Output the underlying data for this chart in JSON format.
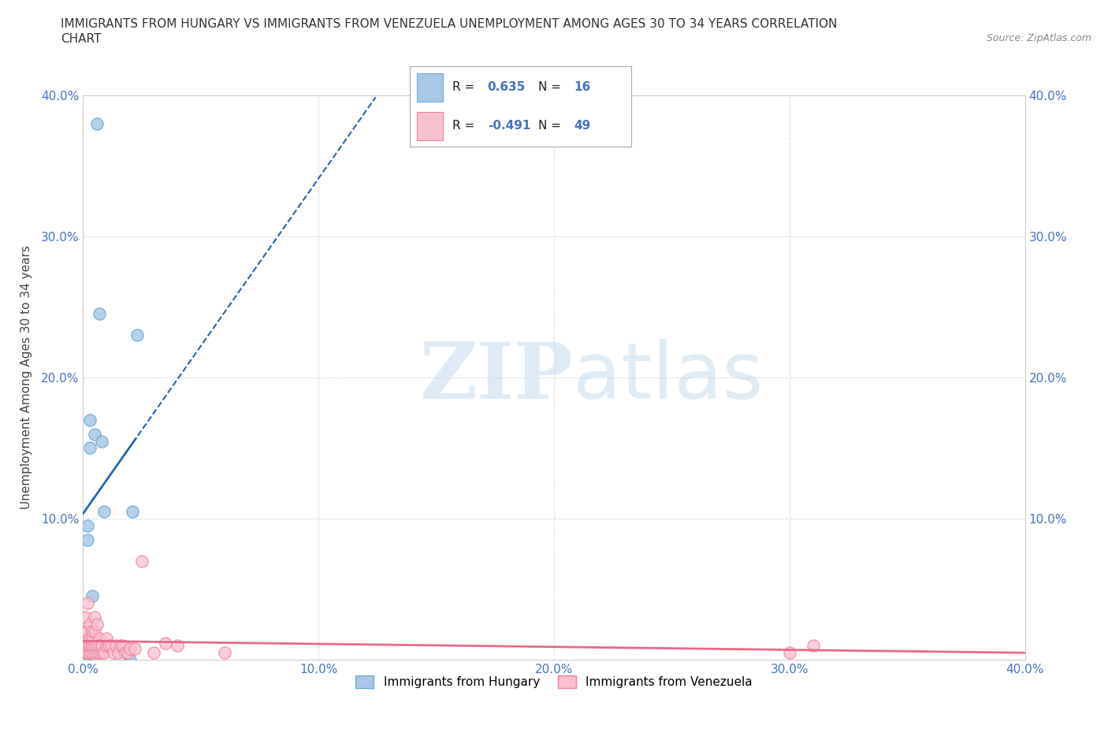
{
  "title_line1": "IMMIGRANTS FROM HUNGARY VS IMMIGRANTS FROM VENEZUELA UNEMPLOYMENT AMONG AGES 30 TO 34 YEARS CORRELATION",
  "title_line2": "CHART",
  "source_text": "Source: ZipAtlas.com",
  "ylabel": "Unemployment Among Ages 30 to 34 years",
  "xlim": [
    0.0,
    0.4
  ],
  "ylim": [
    0.0,
    0.4
  ],
  "xticks": [
    0.0,
    0.1,
    0.2,
    0.3,
    0.4
  ],
  "yticks": [
    0.0,
    0.1,
    0.2,
    0.3,
    0.4
  ],
  "xtick_labels": [
    "0.0%",
    "10.0%",
    "20.0%",
    "30.0%",
    "40.0%"
  ],
  "ytick_labels": [
    "",
    "10.0%",
    "20.0%",
    "30.0%",
    "40.0%"
  ],
  "right_ytick_labels": [
    "",
    "10.0%",
    "20.0%",
    "30.0%",
    "40.0%"
  ],
  "hungary_color": "#a8c8e8",
  "hungary_edge_color": "#6aaed6",
  "venezuela_color": "#f9c0d0",
  "venezuela_edge_color": "#f0809a",
  "hungary_line_color": "#2166ac",
  "venezuela_line_color": "#e8698a",
  "hungary_R": 0.635,
  "hungary_N": 16,
  "venezuela_R": -0.491,
  "venezuela_N": 49,
  "watermark_zip": "ZIP",
  "watermark_atlas": "atlas",
  "hungary_x": [
    0.001,
    0.001,
    0.001,
    0.002,
    0.002,
    0.003,
    0.003,
    0.004,
    0.005,
    0.006,
    0.007,
    0.008,
    0.009,
    0.02,
    0.021,
    0.023
  ],
  "hungary_y": [
    0.001,
    0.002,
    0.005,
    0.085,
    0.095,
    0.15,
    0.17,
    0.045,
    0.16,
    0.38,
    0.245,
    0.155,
    0.105,
    0.0,
    0.105,
    0.23
  ],
  "venezuela_x": [
    0.001,
    0.001,
    0.001,
    0.001,
    0.002,
    0.002,
    0.002,
    0.002,
    0.003,
    0.003,
    0.003,
    0.003,
    0.004,
    0.004,
    0.004,
    0.004,
    0.005,
    0.005,
    0.005,
    0.005,
    0.006,
    0.006,
    0.006,
    0.007,
    0.007,
    0.007,
    0.008,
    0.008,
    0.009,
    0.01,
    0.01,
    0.011,
    0.012,
    0.013,
    0.014,
    0.015,
    0.016,
    0.017,
    0.018,
    0.019,
    0.02,
    0.022,
    0.025,
    0.03,
    0.035,
    0.04,
    0.06,
    0.3,
    0.31
  ],
  "venezuela_y": [
    0.03,
    0.02,
    0.01,
    0.005,
    0.005,
    0.01,
    0.02,
    0.04,
    0.005,
    0.01,
    0.015,
    0.025,
    0.005,
    0.01,
    0.015,
    0.02,
    0.005,
    0.01,
    0.02,
    0.03,
    0.005,
    0.025,
    0.01,
    0.005,
    0.015,
    0.01,
    0.005,
    0.01,
    0.005,
    0.01,
    0.015,
    0.01,
    0.01,
    0.005,
    0.01,
    0.005,
    0.01,
    0.01,
    0.005,
    0.005,
    0.008,
    0.008,
    0.07,
    0.005,
    0.012,
    0.01,
    0.005,
    0.005,
    0.01
  ],
  "background_color": "#ffffff",
  "grid_color": "#cccccc",
  "tick_color": "#4472c4",
  "legend_box_color": "#4472c4",
  "legend_bg": "#ffffff"
}
